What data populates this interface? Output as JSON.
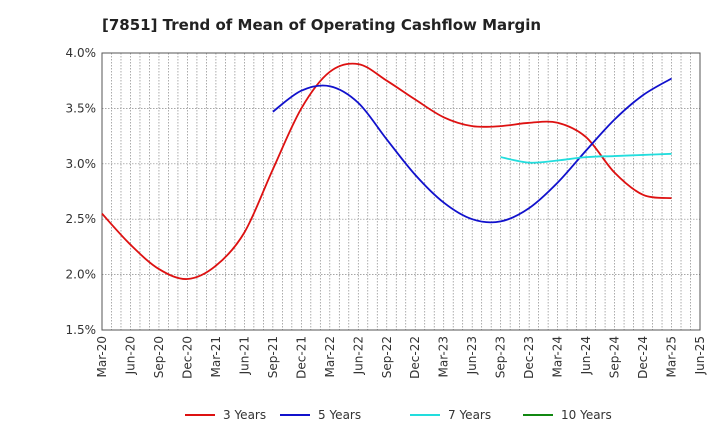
{
  "chart_data": {
    "type": "line",
    "title": "[7851]  Trend of Mean of Operating Cashflow Margin",
    "xlabel": "",
    "ylabel": "",
    "ylim": [
      1.5,
      4.0
    ],
    "y_ticks": [
      "1.5%",
      "2.0%",
      "2.5%",
      "3.0%",
      "3.5%",
      "4.0%"
    ],
    "y_tick_values": [
      1.5,
      2.0,
      2.5,
      3.0,
      3.5,
      4.0
    ],
    "x_ticks": [
      "Mar-20",
      "Jun-20",
      "Sep-20",
      "Dec-20",
      "Mar-21",
      "Jun-21",
      "Sep-21",
      "Dec-21",
      "Mar-22",
      "Jun-22",
      "Sep-22",
      "Dec-22",
      "Mar-23",
      "Jun-23",
      "Sep-23",
      "Dec-23",
      "Mar-24",
      "Jun-24",
      "Sep-24",
      "Dec-24",
      "Mar-25",
      "Jun-25"
    ],
    "grid": true,
    "legend_position": "bottom",
    "series": [
      {
        "name": "3 Years",
        "color": "#dd1111",
        "x": [
          "Mar-20",
          "Jun-20",
          "Sep-20",
          "Dec-20",
          "Mar-21",
          "Jun-21",
          "Sep-21",
          "Dec-21",
          "Mar-22",
          "Jun-22",
          "Sep-22",
          "Dec-22",
          "Mar-23",
          "Jun-23",
          "Sep-23",
          "Dec-23",
          "Mar-24",
          "Jun-24",
          "Sep-24",
          "Dec-24",
          "Mar-25"
        ],
        "values": [
          2.55,
          2.27,
          2.05,
          1.96,
          2.08,
          2.38,
          2.95,
          3.5,
          3.83,
          3.9,
          3.75,
          3.58,
          3.42,
          3.34,
          3.34,
          3.37,
          3.37,
          3.24,
          2.92,
          2.72,
          2.69
        ]
      },
      {
        "name": "5 Years",
        "color": "#1111cc",
        "x": [
          "Sep-21",
          "Dec-21",
          "Mar-22",
          "Jun-22",
          "Sep-22",
          "Dec-22",
          "Mar-23",
          "Jun-23",
          "Sep-23",
          "Dec-23",
          "Mar-24",
          "Jun-24",
          "Sep-24",
          "Dec-24",
          "Mar-25"
        ],
        "values": [
          3.47,
          3.66,
          3.7,
          3.55,
          3.22,
          2.9,
          2.65,
          2.5,
          2.48,
          2.6,
          2.83,
          3.12,
          3.4,
          3.62,
          3.77
        ]
      },
      {
        "name": "7 Years",
        "color": "#22dddd",
        "x": [
          "Sep-23",
          "Dec-23",
          "Mar-24",
          "Jun-24",
          "Sep-24",
          "Dec-24",
          "Mar-25"
        ],
        "values": [
          3.06,
          3.01,
          3.03,
          3.06,
          3.07,
          3.08,
          3.09
        ]
      },
      {
        "name": "10 Years",
        "color": "#118811",
        "x": [],
        "values": []
      }
    ]
  }
}
